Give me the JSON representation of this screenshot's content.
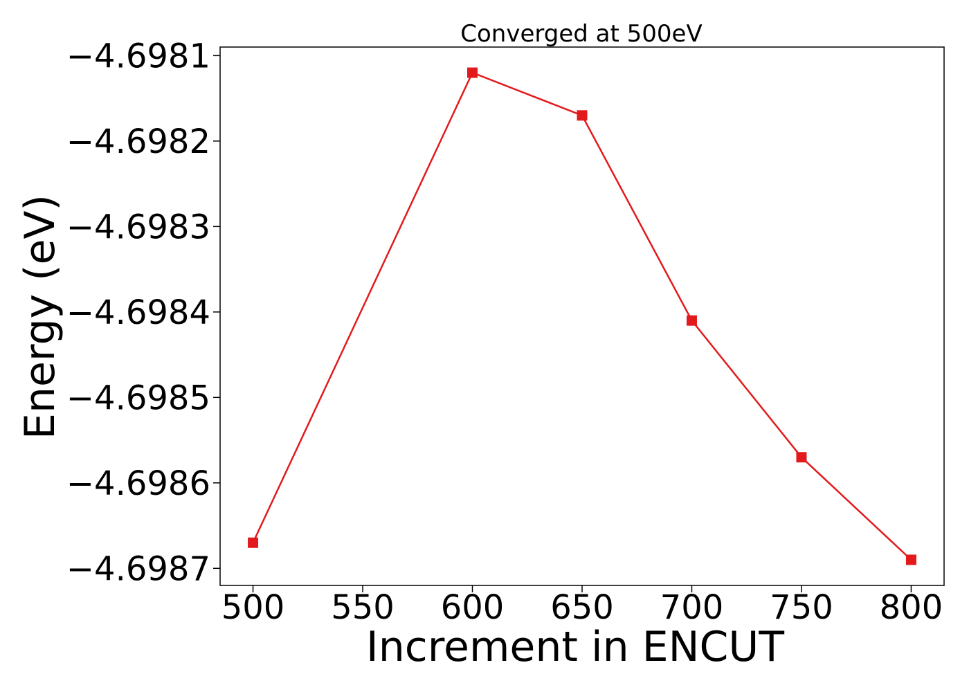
{
  "chart_data": {
    "type": "line",
    "title": "Converged at 500eV",
    "xlabel": "Increment in ENCUT",
    "ylabel": "Energy (eV)",
    "x": [
      500,
      600,
      650,
      700,
      750,
      800
    ],
    "series": [
      {
        "values": [
          -4.69867,
          -4.69812,
          -4.69817,
          -4.69841,
          -4.69857,
          -4.69869
        ],
        "color": "#e31a1c",
        "marker": "square"
      }
    ],
    "xlim": [
      485,
      815
    ],
    "ylim": [
      -4.69872,
      -4.69809
    ],
    "xticks": [
      500,
      550,
      600,
      650,
      700,
      750,
      800
    ],
    "xtick_labels": [
      "500",
      "550",
      "600",
      "650",
      "700",
      "750",
      "800"
    ],
    "yticks": [
      -4.6981,
      -4.6982,
      -4.6983,
      -4.6984,
      -4.6985,
      -4.6986,
      -4.6987
    ],
    "ytick_labels": [
      "−4.6981",
      "−4.6982",
      "−4.6983",
      "−4.6984",
      "−4.6985",
      "−4.6986",
      "−4.6987"
    ],
    "grid": false,
    "legend": "none"
  }
}
